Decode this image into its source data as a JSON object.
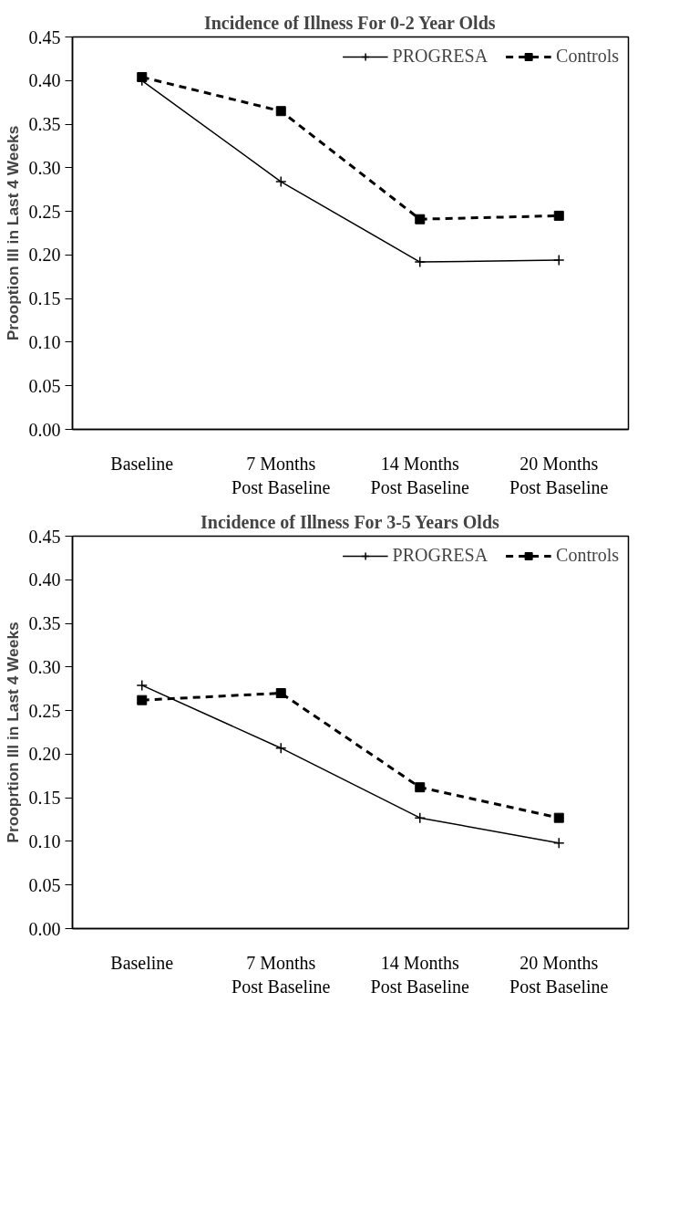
{
  "chart_data": [
    {
      "type": "line",
      "title": "Incidence of Illness For 0-2 Year Olds",
      "ylabel": "Prooption Ill in Last 4 Weeks",
      "categories": [
        "Baseline",
        "7 Months\nPost Baseline",
        "14 Months\nPost Baseline",
        "20 Months\nPost Baseline"
      ],
      "ylim": [
        0,
        0.45
      ],
      "yticks": [
        {
          "value": 0,
          "label": "0.00"
        },
        {
          "value": 0.05,
          "label": "0.05"
        },
        {
          "value": 0.1,
          "label": "0.10"
        },
        {
          "value": 0.15,
          "label": "0.15"
        },
        {
          "value": 0.2,
          "label": "0.20"
        },
        {
          "value": 0.25,
          "label": "0.25"
        },
        {
          "value": 0.3,
          "label": "0.30"
        },
        {
          "value": 0.35,
          "label": "0.35"
        },
        {
          "value": 0.4,
          "label": "0.40"
        },
        {
          "value": 0.45,
          "label": "0.45"
        }
      ],
      "grid": false,
      "legend": "top right",
      "series": [
        {
          "name": "PROGRESA",
          "color": "#000000",
          "values": [
            0.4,
            0.284,
            0.192,
            0.194
          ],
          "line_style": "solid",
          "marker": "cross"
        },
        {
          "name": "Controls",
          "color": "#000000",
          "values": [
            0.404,
            0.365,
            0.241,
            0.245
          ],
          "line_style": "dashed",
          "marker": "square"
        }
      ]
    },
    {
      "type": "line",
      "title": "Incidence of Illness For 3-5 Years Olds",
      "ylabel": "Prooprtion Ill in Last 4 Weeks",
      "categories": [
        "Baseline",
        "7 Months\nPost Baseline",
        "14 Months\nPost Baseline",
        "20 Months\nPost Baseline"
      ],
      "ylim": [
        0,
        0.45
      ],
      "yticks": [
        {
          "value": 0,
          "label": "0.00"
        },
        {
          "value": 0.05,
          "label": "0.05"
        },
        {
          "value": 0.1,
          "label": "0.10"
        },
        {
          "value": 0.15,
          "label": "0.15"
        },
        {
          "value": 0.2,
          "label": "0.20"
        },
        {
          "value": 0.25,
          "label": "0.25"
        },
        {
          "value": 0.3,
          "label": "0.30"
        },
        {
          "value": 0.35,
          "label": "0.35"
        },
        {
          "value": 0.4,
          "label": "0.40"
        },
        {
          "value": 0.45,
          "label": "0.45"
        }
      ],
      "grid": false,
      "legend": "top right",
      "series": [
        {
          "name": "PROGRESA",
          "color": "#000000",
          "values": [
            0.279,
            0.207,
            0.127,
            0.098
          ],
          "line_style": "solid",
          "marker": "cross"
        },
        {
          "name": "Controls",
          "color": "#000000",
          "values": [
            0.262,
            0.27,
            0.162,
            0.127
          ],
          "line_style": "dashed",
          "marker": "square"
        }
      ]
    }
  ]
}
